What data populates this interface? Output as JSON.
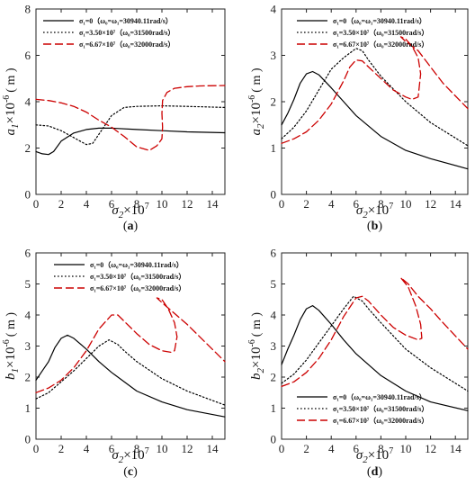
{
  "chart_data": [
    {
      "id": "a",
      "type": "line",
      "caption_label": "a",
      "ylabel_base": "a",
      "ylabel_sub": "1",
      "ylabel_tail": "×10",
      "ylabel_exp": "-6",
      "ylabel_unit": "( m )",
      "xlabel_base": "σ",
      "xlabel_sub": "2",
      "xlabel_tail": "×10",
      "xlabel_exp": "7",
      "xlim": [
        0,
        15
      ],
      "ylim": [
        0,
        8
      ],
      "xticks": [
        "0",
        "2",
        "4",
        "6",
        "8",
        "10",
        "12",
        "14"
      ],
      "yticks": [
        "0",
        "2",
        "4",
        "6",
        "8"
      ],
      "legend_position": "top-left",
      "series": [
        {
          "name": "σ₁=0（ω₀=ω₁=30940.11rad/s）",
          "style": "solid",
          "color": "#000000",
          "points": [
            [
              0,
              1.85
            ],
            [
              0.5,
              1.75
            ],
            [
              1,
              1.72
            ],
            [
              1.4,
              1.85
            ],
            [
              2,
              2.3
            ],
            [
              3,
              2.65
            ],
            [
              4,
              2.8
            ],
            [
              5,
              2.86
            ],
            [
              6,
              2.86
            ],
            [
              8,
              2.8
            ],
            [
              10,
              2.75
            ],
            [
              12,
              2.7
            ],
            [
              15,
              2.66
            ]
          ]
        },
        {
          "name": "σ₁=3.50×10⁷（ω₀=31500rad/s）",
          "style": "dotted",
          "color": "#000000",
          "points": [
            [
              0,
              3.0
            ],
            [
              1,
              2.95
            ],
            [
              2,
              2.75
            ],
            [
              3,
              2.45
            ],
            [
              4,
              2.15
            ],
            [
              4.5,
              2.2
            ],
            [
              5,
              2.6
            ],
            [
              6,
              3.4
            ],
            [
              7,
              3.75
            ],
            [
              8,
              3.8
            ],
            [
              10,
              3.82
            ],
            [
              12,
              3.8
            ],
            [
              15,
              3.75
            ]
          ]
        },
        {
          "name": "σ₁=6.67×10⁷（ω₀=32000rad/s）",
          "style": "dashed",
          "color": "#cc0000",
          "points": [
            [
              0,
              4.1
            ],
            [
              1,
              4.05
            ],
            [
              2,
              3.95
            ],
            [
              3,
              3.8
            ],
            [
              4,
              3.55
            ],
            [
              5,
              3.2
            ],
            [
              6,
              2.9
            ],
            [
              7,
              2.5
            ],
            [
              8,
              2.05
            ],
            [
              9,
              1.9
            ],
            [
              9.6,
              2.1
            ],
            [
              10,
              2.4
            ],
            [
              10.05,
              2.9
            ],
            [
              10,
              3.5
            ],
            [
              10.05,
              4.05
            ],
            [
              10.4,
              4.4
            ],
            [
              11,
              4.58
            ],
            [
              12,
              4.65
            ],
            [
              13,
              4.68
            ],
            [
              15,
              4.7
            ]
          ]
        }
      ]
    },
    {
      "id": "b",
      "type": "line",
      "caption_label": "b",
      "ylabel_base": "a",
      "ylabel_sub": "2",
      "ylabel_tail": "×10",
      "ylabel_exp": "-6",
      "ylabel_unit": "( m )",
      "xlabel_base": "σ",
      "xlabel_sub": "2",
      "xlabel_tail": "×10",
      "xlabel_exp": "7",
      "xlim": [
        0,
        15
      ],
      "ylim": [
        0,
        4
      ],
      "xticks": [
        "0",
        "2",
        "4",
        "6",
        "8",
        "10",
        "12",
        "14"
      ],
      "yticks": [
        "0",
        "1",
        "2",
        "3",
        "4"
      ],
      "legend_position": "top-right",
      "series": [
        {
          "name": "σ₁=0（ω₀=ω₁=30940.11rad/s）",
          "style": "solid",
          "color": "#000000",
          "points": [
            [
              0,
              1.5
            ],
            [
              0.5,
              1.75
            ],
            [
              1,
              2.05
            ],
            [
              1.5,
              2.4
            ],
            [
              2,
              2.6
            ],
            [
              2.5,
              2.65
            ],
            [
              3,
              2.58
            ],
            [
              4,
              2.3
            ],
            [
              5,
              2.0
            ],
            [
              6,
              1.7
            ],
            [
              8,
              1.25
            ],
            [
              10,
              0.95
            ],
            [
              12,
              0.77
            ],
            [
              15,
              0.55
            ]
          ]
        },
        {
          "name": "σ₁=3.50×10⁷（ω₀=31500rad/s）",
          "style": "dotted",
          "color": "#000000",
          "points": [
            [
              0,
              1.2
            ],
            [
              1,
              1.45
            ],
            [
              2,
              1.8
            ],
            [
              3,
              2.25
            ],
            [
              4,
              2.7
            ],
            [
              5,
              2.95
            ],
            [
              6,
              3.15
            ],
            [
              6.5,
              3.1
            ],
            [
              7,
              2.9
            ],
            [
              8,
              2.55
            ],
            [
              10,
              2.0
            ],
            [
              12,
              1.55
            ],
            [
              15,
              1.05
            ]
          ]
        },
        {
          "name": "σ₁=6.67×10⁷（ω₀=32000rad/s）",
          "style": "dashed",
          "color": "#cc0000",
          "points": [
            [
              0,
              1.1
            ],
            [
              1,
              1.2
            ],
            [
              2,
              1.35
            ],
            [
              3,
              1.6
            ],
            [
              4,
              1.95
            ],
            [
              5,
              2.45
            ],
            [
              5.5,
              2.75
            ],
            [
              6,
              2.9
            ],
            [
              6.5,
              2.88
            ],
            [
              7,
              2.75
            ],
            [
              8,
              2.5
            ],
            [
              9,
              2.25
            ],
            [
              10,
              2.1
            ],
            [
              10.5,
              2.05
            ],
            [
              11,
              2.1
            ],
            [
              11.2,
              2.6
            ],
            [
              11,
              2.95
            ],
            [
              10.5,
              3.2
            ],
            [
              10,
              3.35
            ],
            [
              9.6,
              3.4
            ],
            [
              10,
              3.3
            ],
            [
              11,
              3.1
            ],
            [
              12,
              2.75
            ],
            [
              13,
              2.4
            ],
            [
              15,
              1.85
            ]
          ]
        }
      ]
    },
    {
      "id": "c",
      "type": "line",
      "caption_label": "c",
      "ylabel_base": "b",
      "ylabel_sub": "1",
      "ylabel_tail": "×10",
      "ylabel_exp": "-6",
      "ylabel_unit": "( m )",
      "xlabel_base": "σ",
      "xlabel_sub": "2",
      "xlabel_tail": "×10",
      "xlabel_exp": "7",
      "xlim": [
        0,
        15
      ],
      "ylim": [
        0,
        6
      ],
      "xticks": [
        "0",
        "2",
        "4",
        "6",
        "8",
        "10",
        "12",
        "14"
      ],
      "yticks": [
        "0",
        "1",
        "2",
        "3",
        "4",
        "5",
        "6"
      ],
      "legend_position": "top-right",
      "series": [
        {
          "name": "σ₁=0（ω₀=ω₁=30940.11rad/s）",
          "style": "solid",
          "color": "#000000",
          "points": [
            [
              0,
              1.9
            ],
            [
              0.5,
              2.2
            ],
            [
              1,
              2.5
            ],
            [
              1.5,
              2.95
            ],
            [
              2,
              3.25
            ],
            [
              2.5,
              3.35
            ],
            [
              3,
              3.25
            ],
            [
              4,
              2.9
            ],
            [
              5,
              2.5
            ],
            [
              6,
              2.15
            ],
            [
              8,
              1.55
            ],
            [
              10,
              1.2
            ],
            [
              12,
              0.95
            ],
            [
              15,
              0.72
            ]
          ]
        },
        {
          "name": "σ₁=3.50×10⁷（ω₀=31500rad/s）",
          "style": "dotted",
          "color": "#000000",
          "points": [
            [
              0,
              1.3
            ],
            [
              1,
              1.5
            ],
            [
              2,
              1.85
            ],
            [
              3,
              2.2
            ],
            [
              4,
              2.6
            ],
            [
              5,
              3.0
            ],
            [
              5.8,
              3.2
            ],
            [
              6.5,
              3.05
            ],
            [
              7,
              2.85
            ],
            [
              8,
              2.5
            ],
            [
              10,
              1.95
            ],
            [
              12,
              1.55
            ],
            [
              15,
              1.1
            ]
          ]
        },
        {
          "name": "σ₁=6.67×10⁷（ω₀=32000rad/s）",
          "style": "dashed",
          "color": "#cc0000",
          "points": [
            [
              0,
              1.5
            ],
            [
              1,
              1.65
            ],
            [
              2,
              1.9
            ],
            [
              3,
              2.3
            ],
            [
              4,
              2.85
            ],
            [
              5,
              3.55
            ],
            [
              6,
              4.0
            ],
            [
              6.5,
              4.0
            ],
            [
              7,
              3.8
            ],
            [
              8,
              3.4
            ],
            [
              9,
              3.05
            ],
            [
              10,
              2.85
            ],
            [
              10.7,
              2.8
            ],
            [
              11,
              2.85
            ],
            [
              11.2,
              3.3
            ],
            [
              11,
              3.75
            ],
            [
              10.5,
              4.2
            ],
            [
              10,
              4.5
            ],
            [
              9.6,
              4.55
            ],
            [
              10,
              4.4
            ],
            [
              11,
              4.05
            ],
            [
              12,
              3.7
            ],
            [
              13,
              3.3
            ],
            [
              15,
              2.5
            ]
          ]
        }
      ]
    },
    {
      "id": "d",
      "type": "line",
      "caption_label": "d",
      "ylabel_base": "b",
      "ylabel_sub": "2",
      "ylabel_tail": "×10",
      "ylabel_exp": "-6",
      "ylabel_unit": "( m )",
      "xlabel_base": "σ",
      "xlabel_sub": "2",
      "xlabel_tail": "×10",
      "xlabel_exp": "7",
      "xlim": [
        0,
        15
      ],
      "ylim": [
        0,
        6
      ],
      "xticks": [
        "0",
        "2",
        "4",
        "6",
        "8",
        "10",
        "12",
        "14"
      ],
      "yticks": [
        "0",
        "1",
        "2",
        "3",
        "4",
        "5",
        "6"
      ],
      "legend_position": "bottom-right",
      "series": [
        {
          "name": "σ₁=0（ω₀=ω₁=30940.11rad/s）",
          "style": "solid",
          "color": "#000000",
          "points": [
            [
              0,
              2.4
            ],
            [
              0.5,
              2.9
            ],
            [
              1,
              3.35
            ],
            [
              1.5,
              3.85
            ],
            [
              2,
              4.2
            ],
            [
              2.5,
              4.3
            ],
            [
              3,
              4.15
            ],
            [
              4,
              3.7
            ],
            [
              5,
              3.2
            ],
            [
              6,
              2.75
            ],
            [
              8,
              2.05
            ],
            [
              10,
              1.55
            ],
            [
              12,
              1.2
            ],
            [
              15,
              0.92
            ]
          ]
        },
        {
          "name": "σ₁=3.50×10⁷（ω₀=31500rad/s）",
          "style": "dotted",
          "color": "#000000",
          "points": [
            [
              0,
              1.8
            ],
            [
              1,
              2.1
            ],
            [
              2,
              2.55
            ],
            [
              3,
              3.1
            ],
            [
              4,
              3.65
            ],
            [
              5,
              4.2
            ],
            [
              5.8,
              4.6
            ],
            [
              6.5,
              4.45
            ],
            [
              7,
              4.2
            ],
            [
              8,
              3.75
            ],
            [
              10,
              2.9
            ],
            [
              12,
              2.3
            ],
            [
              15,
              1.55
            ]
          ]
        },
        {
          "name": "σ₁=6.67×10⁷（ω₀=32000rad/s）",
          "style": "dashed",
          "color": "#cc0000",
          "points": [
            [
              0,
              1.7
            ],
            [
              1,
              1.85
            ],
            [
              2,
              2.15
            ],
            [
              3,
              2.6
            ],
            [
              4,
              3.2
            ],
            [
              5,
              3.95
            ],
            [
              6,
              4.55
            ],
            [
              6.5,
              4.6
            ],
            [
              7,
              4.45
            ],
            [
              8,
              4.0
            ],
            [
              9,
              3.6
            ],
            [
              10,
              3.35
            ],
            [
              11,
              3.2
            ],
            [
              11.3,
              3.25
            ],
            [
              11.2,
              3.7
            ],
            [
              10.8,
              4.3
            ],
            [
              10.2,
              4.9
            ],
            [
              9.6,
              5.2
            ],
            [
              10.2,
              5.0
            ],
            [
              11,
              4.6
            ],
            [
              12,
              4.2
            ],
            [
              13,
              3.75
            ],
            [
              15,
              2.9
            ]
          ]
        }
      ]
    }
  ]
}
